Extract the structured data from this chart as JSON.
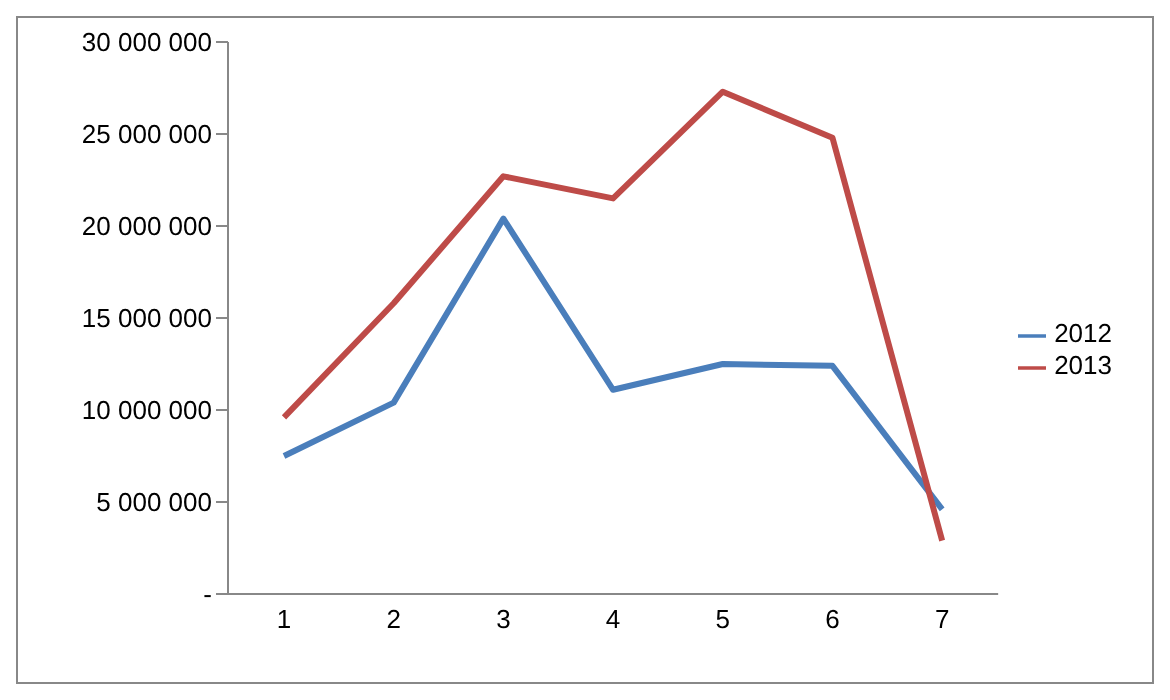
{
  "chart_data": {
    "type": "line",
    "categories": [
      "1",
      "2",
      "3",
      "4",
      "5",
      "6",
      "7"
    ],
    "series": [
      {
        "name": "2012",
        "color": "#4a7ebb",
        "values": [
          7500000,
          10400000,
          20400000,
          11100000,
          12500000,
          12400000,
          4600000
        ]
      },
      {
        "name": "2013",
        "color": "#be4b48",
        "values": [
          9600000,
          15800000,
          22700000,
          21500000,
          27300000,
          24800000,
          2900000
        ]
      }
    ],
    "ylim": [
      0,
      30000000
    ],
    "yticks": [
      {
        "value": 0,
        "label": "-"
      },
      {
        "value": 5000000,
        "label": "5 000 000"
      },
      {
        "value": 10000000,
        "label": "10 000 000"
      },
      {
        "value": 15000000,
        "label": "15 000 000"
      },
      {
        "value": 20000000,
        "label": "20 000 000"
      },
      {
        "value": 25000000,
        "label": "25 000 000"
      },
      {
        "value": 30000000,
        "label": "30 000 000"
      }
    ],
    "grid": false,
    "legend": "right",
    "marker": "none",
    "line_style": "solid"
  }
}
